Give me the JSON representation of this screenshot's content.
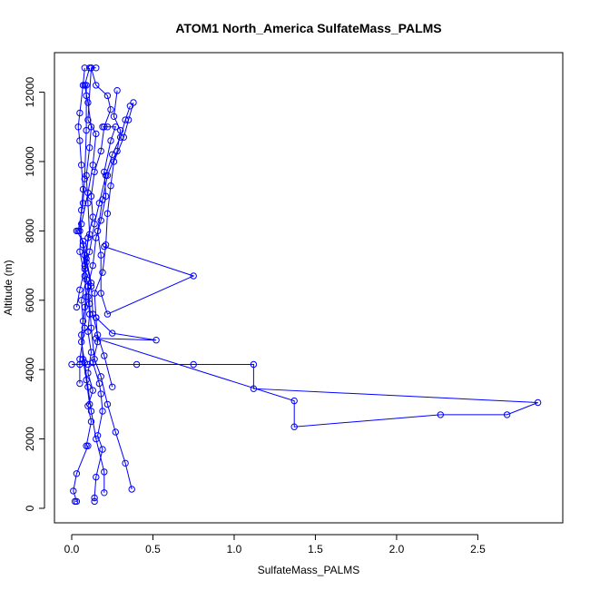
{
  "chart_data": {
    "type": "line",
    "title": "ATOM1 North_America SulfateMass_PALMS",
    "xlabel": "SulfateMass_PALMS",
    "ylabel": "Altitude (m)",
    "xlim": [
      0,
      2.9
    ],
    "ylim": [
      0,
      12800
    ],
    "xticks": [
      0.0,
      0.5,
      1.0,
      1.5,
      2.0,
      2.5
    ],
    "xtick_labels": [
      "0.0",
      "0.5",
      "1.0",
      "1.5",
      "2.0",
      "2.5"
    ],
    "yticks": [
      0,
      2000,
      4000,
      6000,
      8000,
      10000,
      12000
    ],
    "ytick_labels": [
      "0",
      "2000",
      "4000",
      "6000",
      "8000",
      "10000",
      "12000"
    ],
    "series_color": "#0000ff",
    "grid": false,
    "series": [
      {
        "values": [
          {
            "x": 0.02,
            "y": 200
          },
          {
            "x": 0.03,
            "y": 200
          },
          {
            "x": 0.01,
            "y": 500
          },
          {
            "x": 0.03,
            "y": 1000
          },
          {
            "x": 0.1,
            "y": 1800
          },
          {
            "x": 0.09,
            "y": 1800
          },
          {
            "x": 0.12,
            "y": 2500
          },
          {
            "x": 0.1,
            "y": 2950
          },
          {
            "x": 0.13,
            "y": 3400
          },
          {
            "x": 0.1,
            "y": 3900
          },
          {
            "x": 0.12,
            "y": 4500
          },
          {
            "x": 0.1,
            "y": 5100
          },
          {
            "x": 0.11,
            "y": 5600
          },
          {
            "x": 0.1,
            "y": 6100
          },
          {
            "x": 0.12,
            "y": 6500
          },
          {
            "x": 0.09,
            "y": 7200
          },
          {
            "x": 0.1,
            "y": 7800
          },
          {
            "x": 0.13,
            "y": 8400
          },
          {
            "x": 0.12,
            "y": 9000
          },
          {
            "x": 0.14,
            "y": 9700
          },
          {
            "x": 0.18,
            "y": 10300
          },
          {
            "x": 0.2,
            "y": 11000
          },
          {
            "x": 0.24,
            "y": 11500
          },
          {
            "x": 0.22,
            "y": 11900
          },
          {
            "x": 0.15,
            "y": 12200
          },
          {
            "x": 0.12,
            "y": 12700
          }
        ]
      },
      {
        "values": [
          {
            "x": 0.14,
            "y": 200
          },
          {
            "x": 0.14,
            "y": 300
          },
          {
            "x": 0.15,
            "y": 900
          },
          {
            "x": 0.19,
            "y": 1700
          },
          {
            "x": 0.16,
            "y": 2100
          },
          {
            "x": 0.19,
            "y": 2800
          },
          {
            "x": 0.18,
            "y": 3300
          },
          {
            "x": 0.17,
            "y": 3600
          },
          {
            "x": 0.13,
            "y": 4200
          },
          {
            "x": 0.16,
            "y": 4800
          },
          {
            "x": 0.15,
            "y": 5500
          },
          {
            "x": 0.14,
            "y": 6200
          },
          {
            "x": 0.19,
            "y": 6800
          },
          {
            "x": 0.21,
            "y": 7600
          },
          {
            "x": 0.22,
            "y": 8500
          },
          {
            "x": 0.24,
            "y": 9300
          },
          {
            "x": 0.26,
            "y": 10000
          },
          {
            "x": 0.32,
            "y": 10700
          },
          {
            "x": 0.35,
            "y": 11200
          },
          {
            "x": 0.38,
            "y": 11700
          }
        ]
      },
      {
        "values": [
          {
            "x": 0.37,
            "y": 550
          },
          {
            "x": 0.33,
            "y": 1300
          },
          {
            "x": 0.27,
            "y": 2200
          },
          {
            "x": 0.22,
            "y": 3000
          },
          {
            "x": 0.18,
            "y": 3800
          },
          {
            "x": 0.14,
            "y": 4300
          },
          {
            "x": 0.12,
            "y": 5200
          },
          {
            "x": 0.11,
            "y": 5900
          },
          {
            "x": 0.1,
            "y": 6400
          },
          {
            "x": 0.08,
            "y": 7000
          },
          {
            "x": 0.07,
            "y": 7600
          },
          {
            "x": 0.05,
            "y": 8000
          },
          {
            "x": 0.06,
            "y": 8600
          },
          {
            "x": 0.07,
            "y": 9200
          },
          {
            "x": 0.06,
            "y": 9900
          },
          {
            "x": 0.05,
            "y": 10600
          },
          {
            "x": 0.04,
            "y": 11000
          },
          {
            "x": 0.05,
            "y": 11400
          },
          {
            "x": 0.07,
            "y": 12200
          },
          {
            "x": 0.08,
            "y": 12700
          }
        ]
      },
      {
        "values": [
          {
            "x": 0.2,
            "y": 450
          },
          {
            "x": 0.2,
            "y": 1050
          },
          {
            "x": 0.15,
            "y": 2000
          },
          {
            "x": 0.12,
            "y": 2800
          },
          {
            "x": 0.1,
            "y": 3500
          },
          {
            "x": 0.08,
            "y": 4200
          },
          {
            "x": 0.06,
            "y": 4800
          },
          {
            "x": 0.07,
            "y": 5400
          },
          {
            "x": 0.06,
            "y": 6000
          },
          {
            "x": 0.09,
            "y": 6600
          },
          {
            "x": 0.08,
            "y": 7300
          },
          {
            "x": 0.11,
            "y": 7900
          },
          {
            "x": 0.1,
            "y": 8800
          },
          {
            "x": 0.09,
            "y": 9600
          },
          {
            "x": 0.11,
            "y": 10400
          },
          {
            "x": 0.12,
            "y": 11000
          },
          {
            "x": 0.1,
            "y": 11700
          },
          {
            "x": 0.08,
            "y": 12200
          },
          {
            "x": 0.11,
            "y": 12700
          }
        ]
      },
      {
        "values": [
          {
            "x": 0.0,
            "y": 4150
          },
          {
            "x": 0.05,
            "y": 4150
          },
          {
            "x": 0.1,
            "y": 4150
          },
          {
            "x": 0.4,
            "y": 4150
          },
          {
            "x": 0.75,
            "y": 4150
          },
          {
            "x": 1.12,
            "y": 4150
          },
          {
            "x": 1.12,
            "y": 3450
          },
          {
            "x": 2.87,
            "y": 3050
          },
          {
            "x": 2.68,
            "y": 2700
          },
          {
            "x": 2.27,
            "y": 2700
          },
          {
            "x": 1.37,
            "y": 2350
          },
          {
            "x": 1.37,
            "y": 3100
          },
          {
            "x": 0.15,
            "y": 4900
          },
          {
            "x": 0.52,
            "y": 4850
          },
          {
            "x": 0.25,
            "y": 5050
          },
          {
            "x": 0.15,
            "y": 5500
          }
        ]
      },
      {
        "values": [
          {
            "x": 0.2,
            "y": 7550
          },
          {
            "x": 0.75,
            "y": 6700
          },
          {
            "x": 0.22,
            "y": 5600
          },
          {
            "x": 0.18,
            "y": 6200
          },
          {
            "x": 0.18,
            "y": 7300
          },
          {
            "x": 0.16,
            "y": 8000
          },
          {
            "x": 0.19,
            "y": 8900
          },
          {
            "x": 0.22,
            "y": 9600
          },
          {
            "x": 0.28,
            "y": 10300
          },
          {
            "x": 0.3,
            "y": 10900
          },
          {
            "x": 0.26,
            "y": 11300
          },
          {
            "x": 0.28,
            "y": 12050
          }
        ]
      },
      {
        "values": [
          {
            "x": 0.03,
            "y": 5800
          },
          {
            "x": 0.05,
            "y": 6300
          },
          {
            "x": 0.08,
            "y": 6900
          },
          {
            "x": 0.11,
            "y": 7400
          },
          {
            "x": 0.14,
            "y": 8200
          },
          {
            "x": 0.17,
            "y": 8800
          },
          {
            "x": 0.21,
            "y": 9600
          },
          {
            "x": 0.25,
            "y": 10200
          },
          {
            "x": 0.3,
            "y": 10700
          },
          {
            "x": 0.33,
            "y": 11200
          },
          {
            "x": 0.36,
            "y": 11600
          }
        ]
      },
      {
        "values": [
          {
            "x": 0.25,
            "y": 3500
          },
          {
            "x": 0.2,
            "y": 4400
          },
          {
            "x": 0.16,
            "y": 5000
          },
          {
            "x": 0.13,
            "y": 5600
          },
          {
            "x": 0.12,
            "y": 6400
          },
          {
            "x": 0.09,
            "y": 7100
          },
          {
            "x": 0.07,
            "y": 7700
          },
          {
            "x": 0.03,
            "y": 8000
          },
          {
            "x": 0.04,
            "y": 8000
          },
          {
            "x": 0.07,
            "y": 8800
          },
          {
            "x": 0.08,
            "y": 9500
          },
          {
            "x": 0.09,
            "y": 10900
          },
          {
            "x": 0.09,
            "y": 11900
          },
          {
            "x": 0.09,
            "y": 12200
          }
        ]
      },
      {
        "values": [
          {
            "x": 0.11,
            "y": 3000
          },
          {
            "x": 0.09,
            "y": 3700
          },
          {
            "x": 0.07,
            "y": 4300
          },
          {
            "x": 0.06,
            "y": 5000
          },
          {
            "x": 0.08,
            "y": 5800
          },
          {
            "x": 0.1,
            "y": 6400
          },
          {
            "x": 0.13,
            "y": 7000
          },
          {
            "x": 0.15,
            "y": 7800
          },
          {
            "x": 0.18,
            "y": 8300
          },
          {
            "x": 0.21,
            "y": 9000
          },
          {
            "x": 0.2,
            "y": 9700
          },
          {
            "x": 0.24,
            "y": 10600
          },
          {
            "x": 0.27,
            "y": 11000
          },
          {
            "x": 0.22,
            "y": 11000
          },
          {
            "x": 0.19,
            "y": 11000
          }
        ]
      },
      {
        "values": [
          {
            "x": 0.05,
            "y": 3600
          },
          {
            "x": 0.05,
            "y": 4300
          },
          {
            "x": 0.08,
            "y": 5200
          },
          {
            "x": 0.09,
            "y": 6100
          },
          {
            "x": 0.08,
            "y": 6700
          },
          {
            "x": 0.05,
            "y": 7400
          },
          {
            "x": 0.06,
            "y": 8200
          },
          {
            "x": 0.1,
            "y": 9100
          },
          {
            "x": 0.13,
            "y": 9900
          },
          {
            "x": 0.15,
            "y": 10800
          },
          {
            "x": 0.1,
            "y": 11200
          },
          {
            "x": 0.12,
            "y": 12700
          },
          {
            "x": 0.15,
            "y": 12700
          }
        ]
      }
    ]
  }
}
